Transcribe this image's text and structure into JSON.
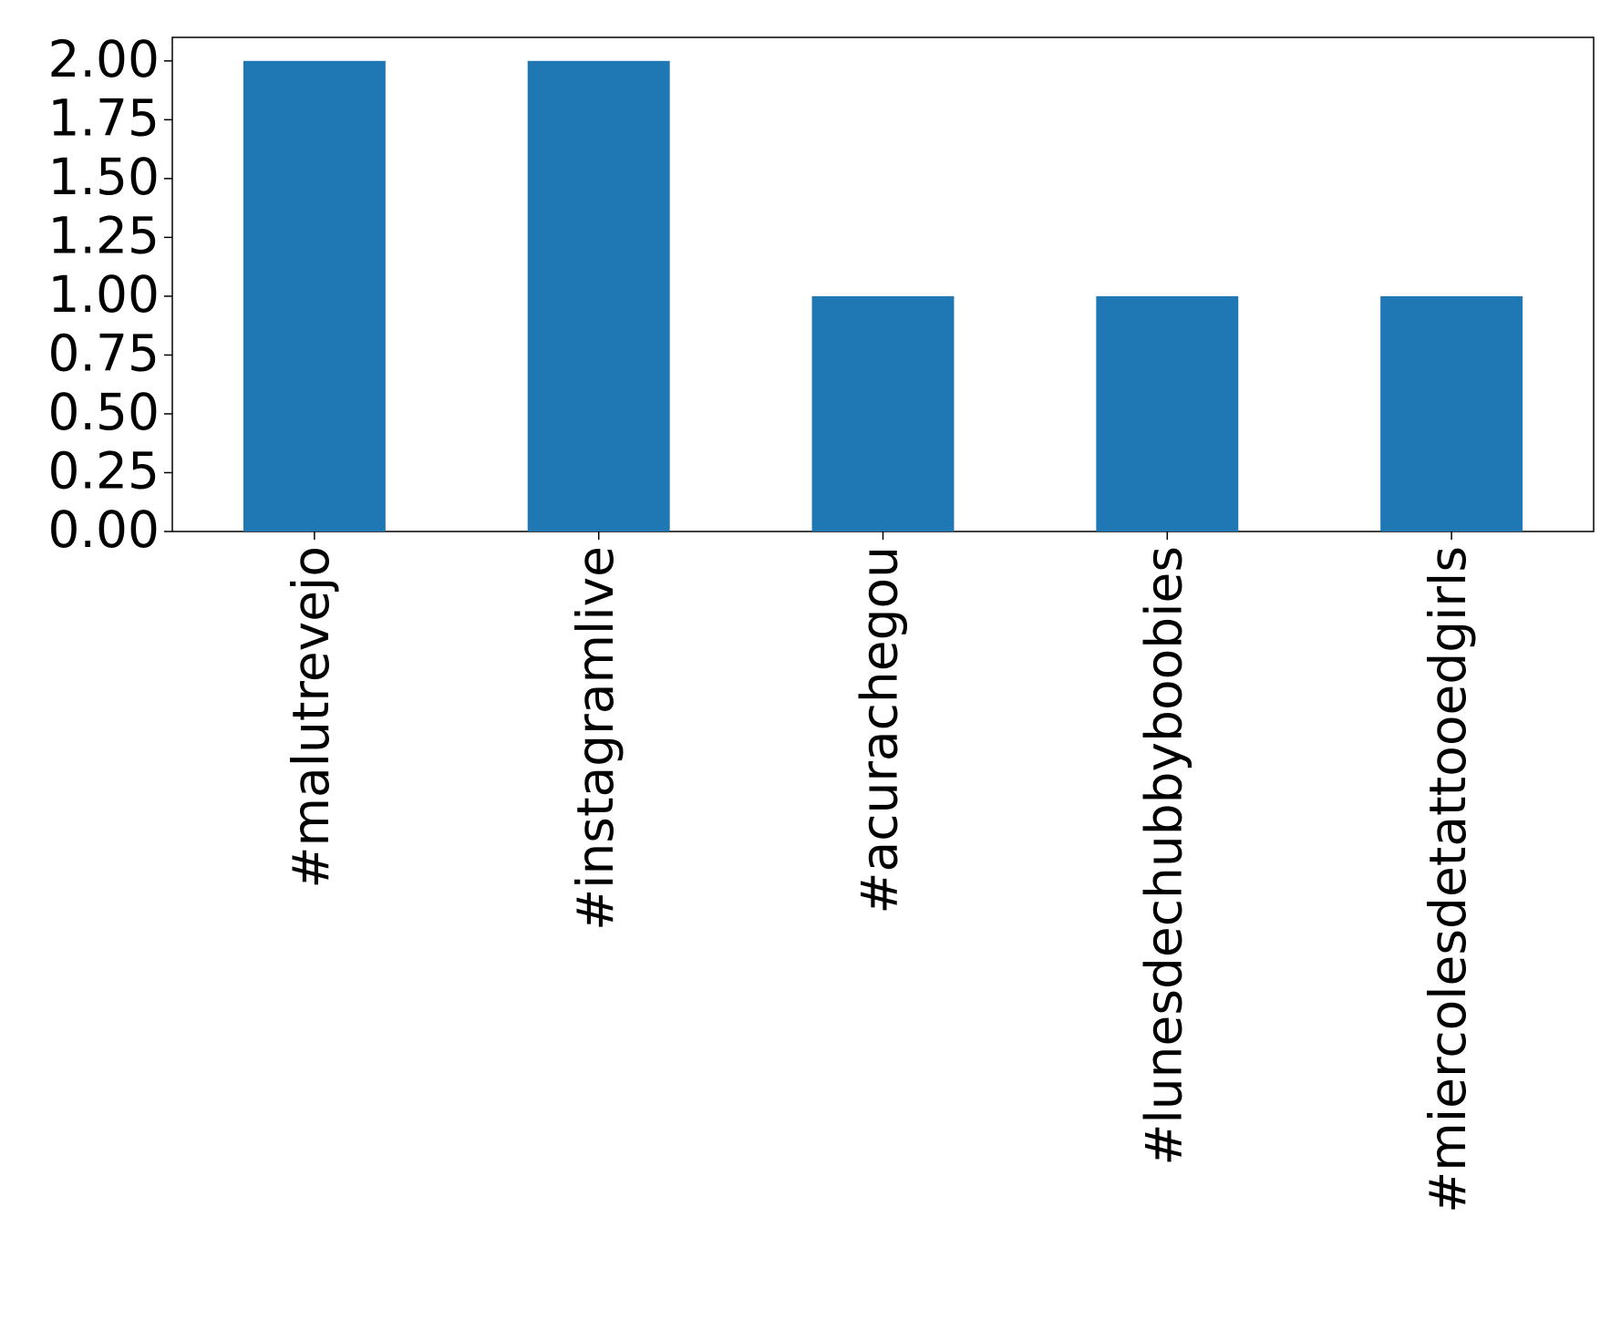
{
  "chart_data": {
    "type": "bar",
    "categories": [
      "#malutrevejo",
      "#instagramlive",
      "#acurachegou",
      "#lunesdechubbyboobies",
      "#miercolesdetattooedgirls"
    ],
    "values": [
      2,
      2,
      1,
      1,
      1
    ],
    "color": "#1f77b4",
    "ylim": [
      0,
      2.1
    ],
    "yticks": [
      {
        "value": 0,
        "label": "0.00"
      },
      {
        "value": 0.25,
        "label": "0.25"
      },
      {
        "value": 0.5,
        "label": "0.50"
      },
      {
        "value": 0.75,
        "label": "0.75"
      },
      {
        "value": 1,
        "label": "1.00"
      },
      {
        "value": 1.25,
        "label": "1.25"
      },
      {
        "value": 1.5,
        "label": "1.50"
      },
      {
        "value": 1.75,
        "label": "1.75"
      },
      {
        "value": 2,
        "label": "2.00"
      }
    ],
    "grid": false
  }
}
